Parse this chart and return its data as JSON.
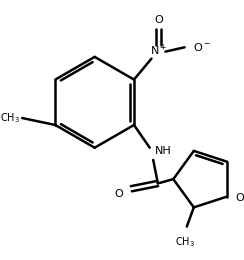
{
  "background_color": "#ffffff",
  "line_color": "#000000",
  "line_width": 1.8,
  "figsize": [
    2.44,
    2.6
  ],
  "dpi": 100,
  "xlim": [
    0,
    244
  ],
  "ylim": [
    0,
    260
  ]
}
